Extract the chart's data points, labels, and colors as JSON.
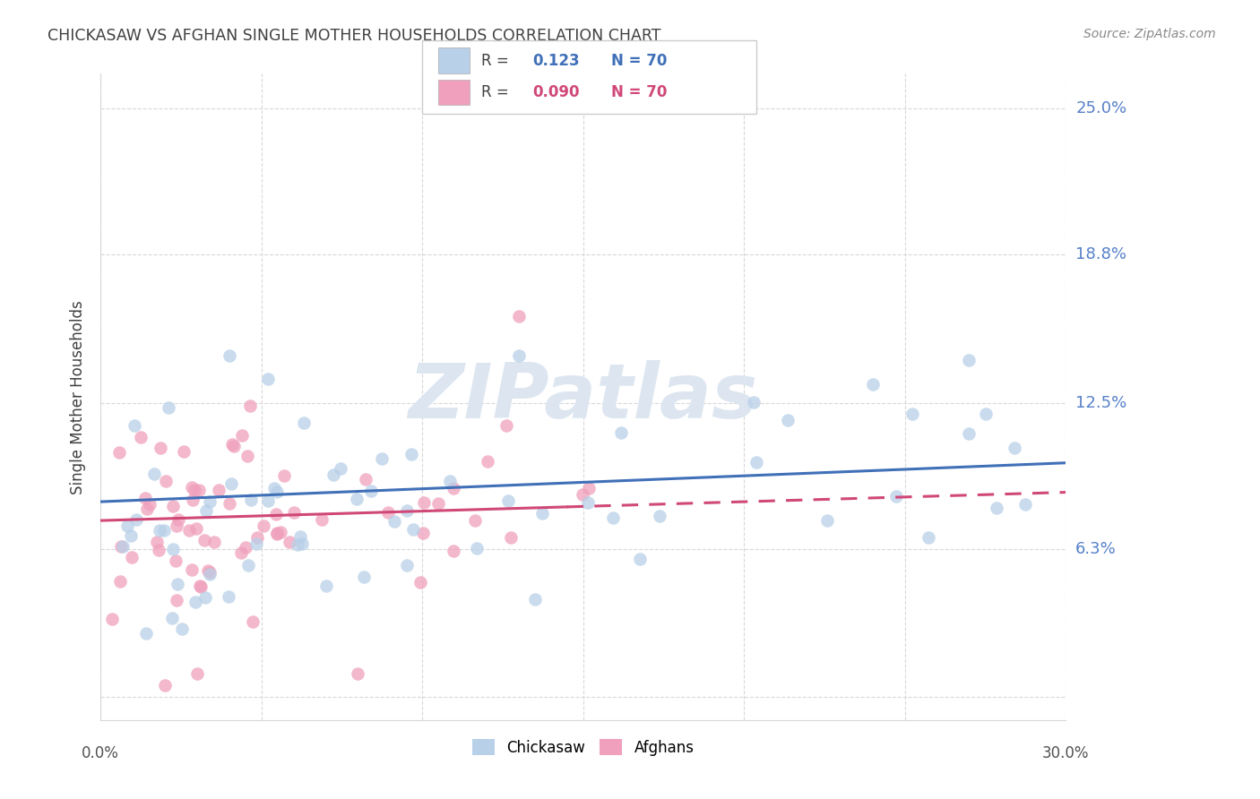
{
  "title": "CHICKASAW VS AFGHAN SINGLE MOTHER HOUSEHOLDS CORRELATION CHART",
  "source": "Source: ZipAtlas.com",
  "ylabel": "Single Mother Households",
  "watermark": "ZIPatlas",
  "xmin": 0.0,
  "xmax": 0.3,
  "ymin": -0.01,
  "ymax": 0.265,
  "ytick_vals": [
    0.0,
    0.063,
    0.125,
    0.188,
    0.25
  ],
  "ytick_labels": [
    "",
    "6.3%",
    "12.5%",
    "18.8%",
    "25.0%"
  ],
  "chickasaw_color": "#b8d0e8",
  "afghan_color": "#f0a0bc",
  "trend_chickasaw_color": "#4070b8",
  "trend_afghan_color": "#d04878",
  "title_color": "#404040",
  "source_color": "#888888",
  "ylabel_color": "#404040",
  "ytick_color": "#5580c8",
  "grid_color": "#d8d8d8",
  "watermark_color": "#dde6f0",
  "background_color": "#ffffff",
  "legend_r1_label": "R = ",
  "legend_r1_val": " 0.123",
  "legend_r1_n": "N = 70",
  "legend_r2_label": "R = ",
  "legend_r2_val": " 0.090",
  "legend_r2_n": "N = 70"
}
